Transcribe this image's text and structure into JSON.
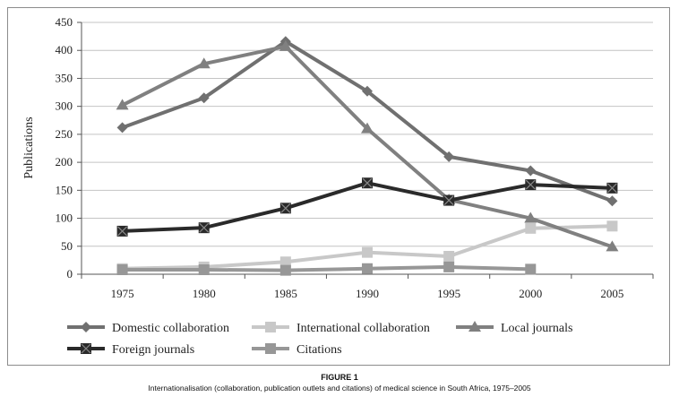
{
  "figure": {
    "label": "FIGURE 1",
    "caption": "Internationalisation (collaboration, publication outlets and citations) of medical science in South Africa, 1975–2005"
  },
  "chart_data": {
    "type": "line",
    "title": "",
    "xlabel": "",
    "ylabel": "Publications",
    "ylim": [
      0,
      450
    ],
    "yticks": [
      0,
      50,
      100,
      150,
      200,
      250,
      300,
      350,
      400,
      450
    ],
    "categories": [
      "1975",
      "1980",
      "1985",
      "1990",
      "1995",
      "2000",
      "2005"
    ],
    "grid": true,
    "legend_position": "bottom",
    "series": [
      {
        "name": "Domestic collaboration",
        "color": "#707070",
        "marker": "diamond",
        "values": [
          262,
          315,
          416,
          327,
          210,
          185,
          131
        ]
      },
      {
        "name": "International collaboration",
        "color": "#c8c8c8",
        "marker": "square",
        "values": [
          10,
          13,
          22,
          39,
          32,
          82,
          86
        ]
      },
      {
        "name": "Local journals",
        "color": "#808080",
        "marker": "triangle",
        "values": [
          302,
          376,
          407,
          260,
          133,
          100,
          49
        ]
      },
      {
        "name": "Foreign journals",
        "color": "#2a2a2a",
        "marker": "xsquare",
        "values": [
          77,
          83,
          118,
          163,
          132,
          160,
          154
        ]
      },
      {
        "name": "Citations",
        "color": "#979797",
        "marker": "square",
        "values": [
          8,
          8,
          7,
          10,
          13,
          9,
          null
        ]
      }
    ]
  }
}
